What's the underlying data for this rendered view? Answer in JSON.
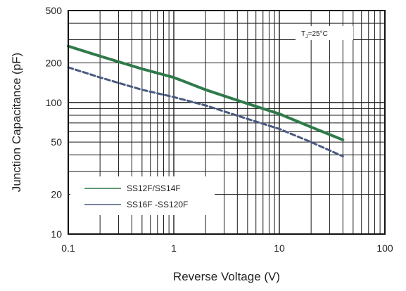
{
  "chart_data": {
    "type": "line",
    "xlabel": "Reverse Voltage (V)",
    "ylabel": "Junction Capacitance (pF)",
    "x_scale": "log",
    "y_scale": "log",
    "xlim": [
      0.1,
      100
    ],
    "ylim": [
      10,
      500
    ],
    "x_ticks": [
      0.1,
      1,
      10,
      100
    ],
    "x_tick_labels": [
      "0.1",
      "1",
      "10",
      "100"
    ],
    "y_ticks": [
      10,
      20,
      50,
      100,
      200,
      500
    ],
    "y_tick_labels": [
      "10",
      "20",
      "50",
      "100",
      "200",
      "500"
    ],
    "grid": true,
    "annotation": "Tₐ=25°C",
    "annotation_main": "T",
    "annotation_sub": "J",
    "annotation_rest": "=25°C",
    "legend_position": "bottom-left",
    "series": [
      {
        "name": "SS12F/SS14F",
        "color": "#2f7a4a",
        "style": "solid",
        "x": [
          0.1,
          0.2,
          0.5,
          1,
          2,
          5,
          10,
          20,
          40
        ],
        "y": [
          268,
          225,
          180,
          155,
          125,
          98,
          82,
          65,
          52
        ]
      },
      {
        "name": "SS16F -SS120F",
        "color": "#4a5a80",
        "style": "dashed",
        "x": [
          0.1,
          0.2,
          0.5,
          1,
          2,
          5,
          10,
          20,
          40
        ],
        "y": [
          185,
          155,
          125,
          110,
          95,
          75,
          63,
          50,
          39
        ]
      }
    ]
  }
}
